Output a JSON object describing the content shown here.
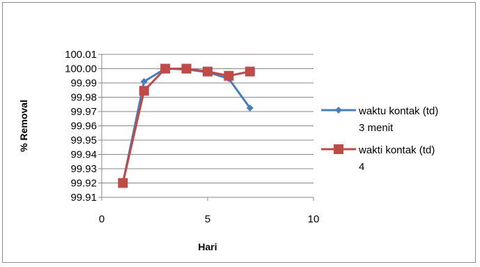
{
  "chart_data": {
    "type": "line",
    "title": "",
    "xlabel": "Hari",
    "ylabel": "% Removal",
    "xlim": [
      0,
      10
    ],
    "ylim": [
      99.91,
      100.01
    ],
    "xticks": [
      "0",
      "5",
      "10"
    ],
    "yticks": [
      "99.91",
      "99.92",
      "99.93",
      "99.94",
      "99.95",
      "99.96",
      "99.97",
      "99.98",
      "99.99",
      "100.00",
      "100.01"
    ],
    "grid": "horizontal",
    "legend_position": "right",
    "series": [
      {
        "name": "waktu kontak (td) 3 menit",
        "name_lines": [
          "waktu kontak (td)",
          "3 menit"
        ],
        "color": "#4a7ebb",
        "marker": "diamond",
        "x": [
          1,
          2,
          3,
          4,
          5,
          6,
          7
        ],
        "y": [
          99.92,
          99.991,
          100.0,
          99.9995,
          99.9975,
          99.993,
          99.9725
        ]
      },
      {
        "name": "wakti kontak (td) 4",
        "name_lines": [
          "wakti kontak (td)",
          "4"
        ],
        "color": "#be4b48",
        "marker": "square",
        "x": [
          1,
          2,
          3,
          4,
          5,
          6,
          7
        ],
        "y": [
          99.92,
          99.9845,
          100.0,
          100.0,
          99.998,
          99.995,
          99.998
        ]
      }
    ]
  }
}
